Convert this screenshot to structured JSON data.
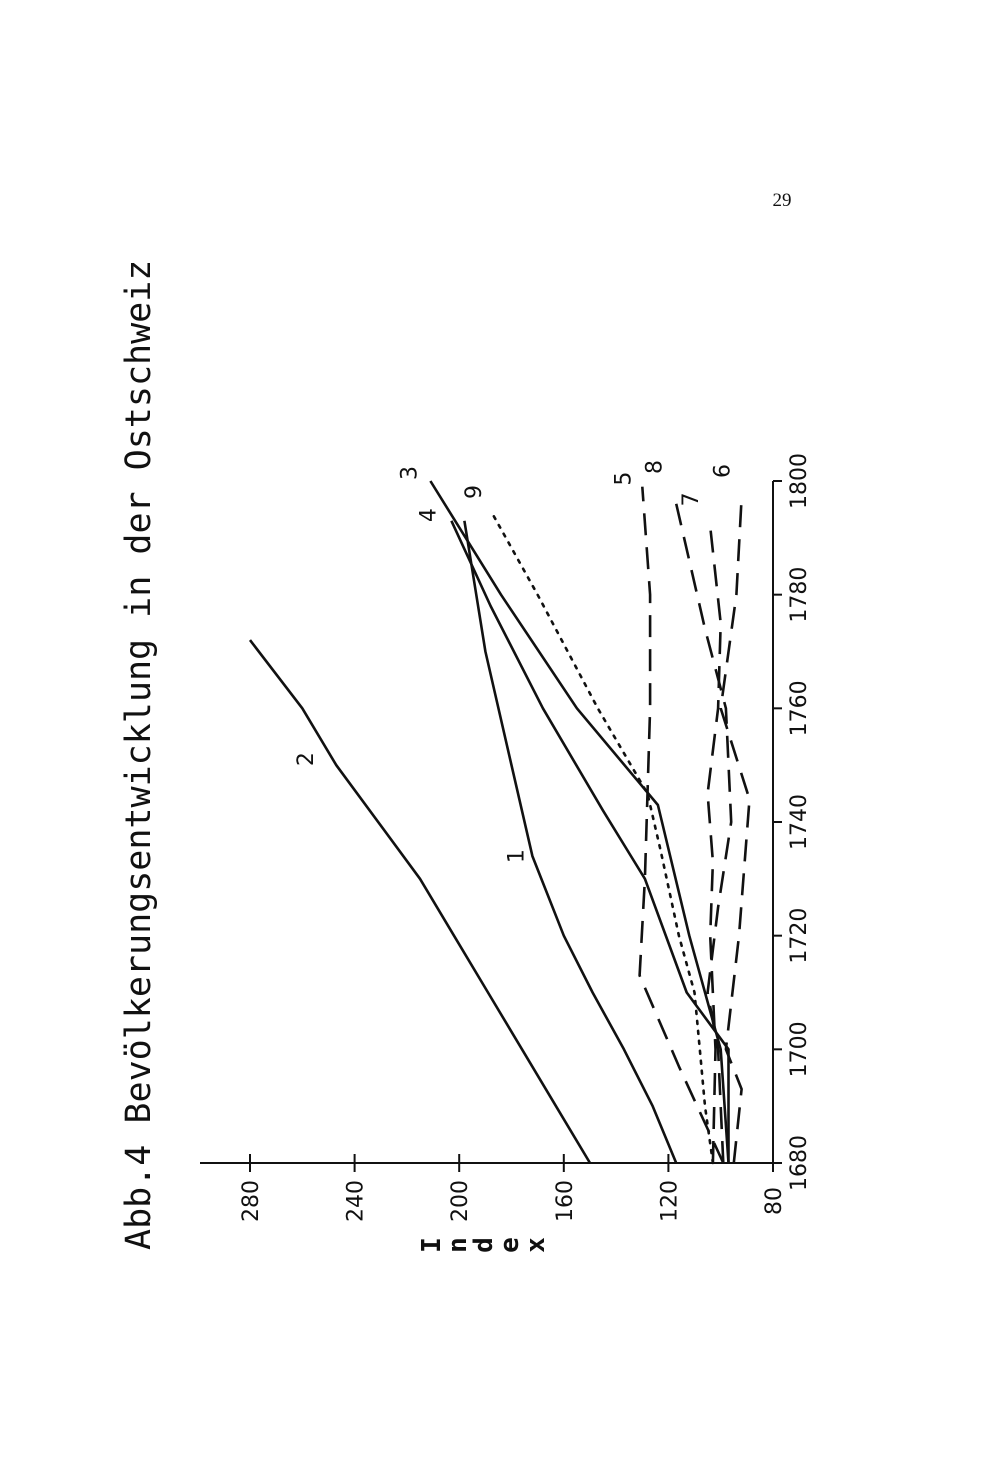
{
  "page": {
    "number": "29"
  },
  "chart_data": {
    "type": "line",
    "title": "Abb.4 Bevölkerungsentwicklung in der Ostschweiz",
    "xlabel": "",
    "ylabel": "Index",
    "xlim": [
      1680,
      1800
    ],
    "ylim": [
      80,
      290
    ],
    "xticks": [
      1680,
      1700,
      1720,
      1740,
      1760,
      1780,
      1800
    ],
    "yticks": [
      80,
      120,
      160,
      200,
      240,
      280
    ],
    "grid": false,
    "legend": "none",
    "orientation": "rotated-90-ccw",
    "series": [
      {
        "label": "1",
        "style": "solid",
        "x": [
          1680,
          1690,
          1700,
          1710,
          1720,
          1734,
          1750,
          1770,
          1793
        ],
        "y": [
          117,
          126,
          137,
          149,
          160,
          172,
          180,
          190,
          198
        ]
      },
      {
        "label": "2",
        "style": "solid",
        "x": [
          1680,
          1690,
          1700,
          1710,
          1720,
          1730,
          1750,
          1760,
          1772
        ],
        "y": [
          150,
          163,
          176,
          189,
          202,
          215,
          247,
          260,
          280
        ]
      },
      {
        "label": "3",
        "style": "solid",
        "x": [
          1680,
          1700,
          1720,
          1743,
          1760,
          1780,
          1800
        ],
        "y": [
          97,
          100,
          112,
          124,
          155,
          184,
          211
        ]
      },
      {
        "label": "4",
        "style": "solid",
        "x": [
          1680,
          1700,
          1710,
          1730,
          1742,
          1760,
          1778,
          1793
        ],
        "y": [
          97,
          97,
          113,
          129,
          145,
          168,
          188,
          203
        ]
      },
      {
        "label": "5",
        "style": "dashed",
        "x": [
          1680,
          1697,
          1713,
          1730,
          1745,
          1760,
          1780,
          1799
        ],
        "y": [
          99,
          116,
          131,
          129,
          128,
          127,
          127,
          130
        ]
      },
      {
        "label": "6",
        "style": "dashed",
        "x": [
          1680,
          1693,
          1700,
          1720,
          1744,
          1760,
          1780,
          1797
        ],
        "y": [
          95,
          92,
          98,
          93,
          89,
          100,
          94,
          92
        ]
      },
      {
        "label": "7",
        "style": "dashed",
        "x": [
          1680,
          1700,
          1720,
          1733,
          1745,
          1760,
          1775,
          1792
        ],
        "y": [
          103,
          102,
          104,
          103,
          105,
          101,
          100,
          104
        ]
      },
      {
        "label": "8",
        "style": "dashed",
        "x": [
          1680,
          1700,
          1710,
          1725,
          1740,
          1760,
          1774,
          1798
        ],
        "y": [
          99,
          101,
          105,
          101,
          96,
          98,
          106,
          118
        ]
      },
      {
        "label": "9",
        "style": "dotted",
        "x": [
          1680,
          1690,
          1700,
          1710,
          1720,
          1735,
          1745,
          1760,
          1780,
          1794
        ],
        "y": [
          103,
          106,
          108,
          110,
          116,
          123,
          128,
          147,
          170,
          187
        ]
      }
    ]
  }
}
